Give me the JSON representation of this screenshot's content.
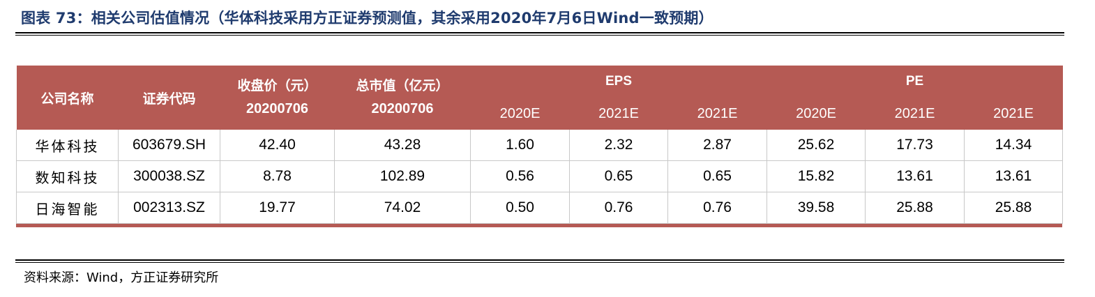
{
  "title": "图表 73：相关公司估值情况（华体科技采用方正证券预测值，其余采用2020年7月6日Wind一致预期）",
  "header": {
    "company": "公司名称",
    "code": "证券代码",
    "close_label": "收盘价（元）",
    "close_date": "20200706",
    "mcap_label": "总市值（亿元）",
    "mcap_date": "20200706",
    "eps_label": "EPS",
    "pe_label": "PE",
    "years": [
      "2020E",
      "2021E",
      "2021E",
      "2020E",
      "2021E",
      "2021E"
    ]
  },
  "rows": [
    {
      "name": "华体科技",
      "code": "603679.SH",
      "close": "42.40",
      "mcap": "43.28",
      "eps": [
        "1.60",
        "2.32",
        "2.87"
      ],
      "pe": [
        "25.62",
        "17.73",
        "14.34"
      ]
    },
    {
      "name": "数知科技",
      "code": "300038.SZ",
      "close": "8.78",
      "mcap": "102.89",
      "eps": [
        "0.56",
        "0.65",
        "0.65"
      ],
      "pe": [
        "15.82",
        "13.61",
        "13.61"
      ]
    },
    {
      "name": "日海智能",
      "code": "002313.SZ",
      "close": "19.77",
      "mcap": "74.02",
      "eps": [
        "0.50",
        "0.76",
        "0.76"
      ],
      "pe": [
        "39.58",
        "25.88",
        "25.88"
      ]
    }
  ],
  "source": "资料来源：Wind，方正证券研究所",
  "colors": {
    "header_bg": "#b55a54",
    "title": "#1f3b6e"
  }
}
